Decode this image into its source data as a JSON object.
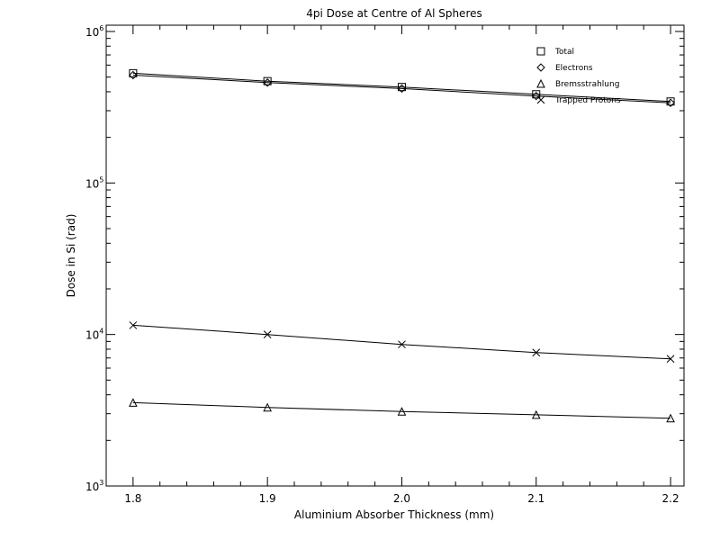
{
  "chart_data": {
    "type": "line",
    "title": "4pi Dose at Centre of Al Spheres",
    "xlabel": "Aluminium Absorber Thickness (mm)",
    "ylabel": "Dose in Si (rad)",
    "x": [
      1.8,
      1.9,
      2.0,
      2.1,
      2.2
    ],
    "x_ticks": [
      "1.8",
      "1.9",
      "2.0",
      "2.1",
      "2.2"
    ],
    "xlim": [
      1.78,
      2.21
    ],
    "ylim": [
      1000,
      1100000
    ],
    "yscale": "log",
    "y_ticks": [
      {
        "value": 1000,
        "base": "10",
        "exp": "3"
      },
      {
        "value": 10000,
        "base": "10",
        "exp": "4"
      },
      {
        "value": 100000,
        "base": "10",
        "exp": "5"
      },
      {
        "value": 1000000,
        "base": "10",
        "exp": "6"
      }
    ],
    "grid": false,
    "legend_position": "top-right",
    "color": "#000000",
    "series": [
      {
        "name": "Total",
        "marker": "square",
        "values": [
          530000,
          470000,
          430000,
          385000,
          345000
        ]
      },
      {
        "name": "Electrons",
        "marker": "diamond",
        "values": [
          515000,
          460000,
          420000,
          375000,
          338000
        ]
      },
      {
        "name": "Bremsstrahlung",
        "marker": "triangle",
        "values": [
          3550,
          3300,
          3100,
          2950,
          2800
        ]
      },
      {
        "name": "Trapped Protons",
        "marker": "x",
        "values": [
          11500,
          10000,
          8600,
          7600,
          6900
        ]
      }
    ]
  }
}
